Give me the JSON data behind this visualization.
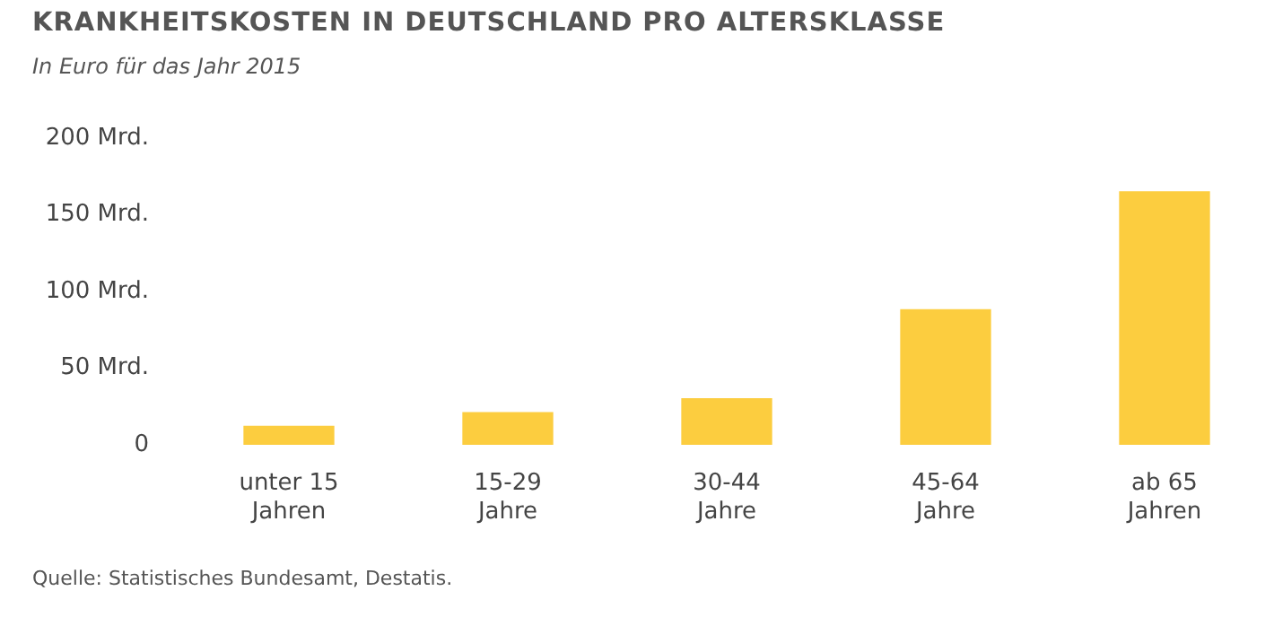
{
  "chart_data": {
    "type": "bar",
    "title": "KRANKHEITSKOSTEN IN DEUTSCHLAND PRO ALTERSKLASSE",
    "subtitle": "In Euro für das Jahr 2015",
    "categories": [
      "unter 15 Jahren",
      "15-29 Jahre",
      "30-44 Jahre",
      "45-64 Jahre",
      "ab 65 Jahren"
    ],
    "values": [
      12,
      21,
      30,
      88,
      165
    ],
    "color": "#fccd3f",
    "ylim": [
      0,
      200
    ],
    "yticks": [
      0,
      {
        "value": 50,
        "label": "50 Mrd."
      },
      {
        "value": 100,
        "label": "100 Mrd."
      },
      {
        "value": 150,
        "label": "150 Mrd."
      },
      {
        "value": 200,
        "label": "200 Mrd."
      }
    ],
    "grid": false,
    "legend": false,
    "annotations": [
      "Quelle: Statistisches Bundesamt, Destatis."
    ]
  }
}
